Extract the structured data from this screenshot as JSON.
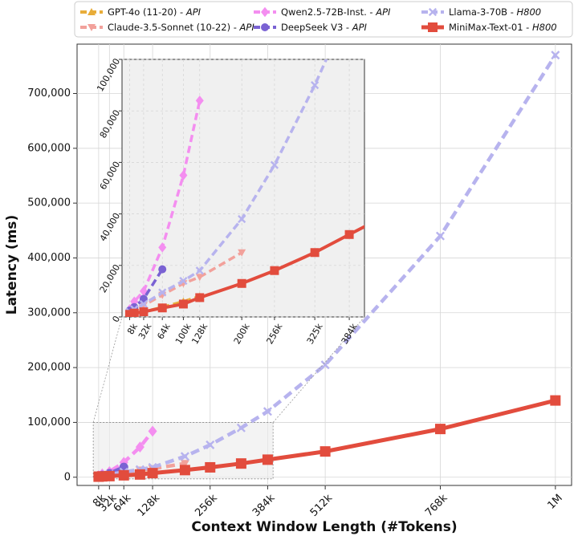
{
  "chart_data": {
    "type": "line",
    "xlabel": "Context Window Length (#Tokens)",
    "ylabel": "Latency (ms)",
    "x_ticks": [
      {
        "label": "8k",
        "value": 8
      },
      {
        "label": "32k",
        "value": 32
      },
      {
        "label": "64k",
        "value": 64
      },
      {
        "label": "128k",
        "value": 128
      },
      {
        "label": "256k",
        "value": 256
      },
      {
        "label": "384k",
        "value": 384
      },
      {
        "label": "512k",
        "value": 512
      },
      {
        "label": "768k",
        "value": 768
      },
      {
        "label": "1M",
        "value": 1024
      }
    ],
    "y_ticks": [
      {
        "label": "0",
        "value": 0
      },
      {
        "label": "100,000",
        "value": 100000
      },
      {
        "label": "200,000",
        "value": 200000
      },
      {
        "label": "300,000",
        "value": 300000
      },
      {
        "label": "400,000",
        "value": 400000
      },
      {
        "label": "500,000",
        "value": 500000
      },
      {
        "label": "600,000",
        "value": 600000
      },
      {
        "label": "700,000",
        "value": 700000
      }
    ],
    "xlim": [
      -40,
      1060
    ],
    "ylim": [
      -15000,
      790000
    ],
    "grid": true,
    "legend_position": "top",
    "series": [
      {
        "name": "GPT-4o (11-20) - API",
        "name_prefix": "GPT-4o (11-20) - ",
        "name_suffix": "API",
        "color": "#e8ad3a",
        "marker": "triangle-up",
        "dash": true,
        "x": [
          8,
          16,
          32,
          64,
          100,
          128
        ],
        "y": [
          500,
          1200,
          2000,
          3800,
          6000,
          8000
        ]
      },
      {
        "name": "Claude-3.5-Sonnet (10-22) - API",
        "name_prefix": "Claude-3.5-Sonnet (10-22) - ",
        "name_suffix": "API",
        "color": "#f2a19b",
        "marker": "triangle-down",
        "dash": true,
        "x": [
          8,
          16,
          32,
          64,
          100,
          128,
          200
        ],
        "y": [
          1500,
          2500,
          4500,
          8500,
          13000,
          15500,
          25000
        ]
      },
      {
        "name": "Qwen2.5-72B-Inst. - API",
        "name_prefix": "Qwen2.5-72B-Inst. - ",
        "name_suffix": "API",
        "color": "#f48ef0",
        "marker": "diamond",
        "dash": true,
        "x": [
          8,
          16,
          32,
          64,
          100,
          128
        ],
        "y": [
          3000,
          6000,
          10000,
          27000,
          55000,
          84000
        ]
      },
      {
        "name": "DeepSeek V3 - API",
        "name_prefix": "DeepSeek V3 - ",
        "name_suffix": "API",
        "color": "#7a62d3",
        "marker": "circle",
        "dash": true,
        "x": [
          8,
          16,
          32,
          64
        ],
        "y": [
          2500,
          3800,
          7000,
          18500
        ]
      },
      {
        "name": "Llama-3-70B - H800",
        "name_prefix": "Llama-3-70B - ",
        "name_suffix": "H800",
        "color": "#b7b3ee",
        "marker": "x",
        "dash": true,
        "x": [
          8,
          16,
          32,
          64,
          100,
          128,
          200,
          256,
          325,
          384,
          512,
          768,
          1024
        ],
        "y": [
          2000,
          3000,
          5000,
          9500,
          14000,
          18000,
          38000,
          59000,
          90000,
          120000,
          205000,
          440000,
          770000
        ]
      },
      {
        "name": "MiniMax-Text-01 - H800",
        "name_prefix": "MiniMax-Text-01 - ",
        "name_suffix": "H800",
        "color": "#e24c3d",
        "marker": "square",
        "dash": false,
        "x": [
          8,
          16,
          32,
          64,
          100,
          128,
          200,
          256,
          325,
          384,
          512,
          768,
          1024
        ],
        "y": [
          1000,
          1500,
          2000,
          3500,
          5000,
          7500,
          13000,
          18000,
          25000,
          32000,
          47000,
          88000,
          140000
        ]
      }
    ],
    "inset": {
      "xlim": [
        -5,
        410
      ],
      "ylim": [
        0,
        100000
      ],
      "x_ticks": [
        {
          "label": "8k",
          "value": 8
        },
        {
          "label": "32k",
          "value": 32
        },
        {
          "label": "64k",
          "value": 64
        },
        {
          "label": "100k",
          "value": 100
        },
        {
          "label": "128k",
          "value": 128
        },
        {
          "label": "200k",
          "value": 200
        },
        {
          "label": "256k",
          "value": 256
        },
        {
          "label": "325k",
          "value": 325
        },
        {
          "label": "384k",
          "value": 384
        }
      ],
      "y_ticks": [
        {
          "label": "0",
          "value": 0
        },
        {
          "label": "20,000",
          "value": 20000
        },
        {
          "label": "40,000",
          "value": 40000
        },
        {
          "label": "60,000",
          "value": 60000
        },
        {
          "label": "80,000",
          "value": 80000
        },
        {
          "label": "100,000",
          "value": 100000
        }
      ],
      "zoom_region": {
        "x": [
          -4,
          396
        ],
        "y": [
          -3000,
          100000
        ]
      }
    }
  }
}
